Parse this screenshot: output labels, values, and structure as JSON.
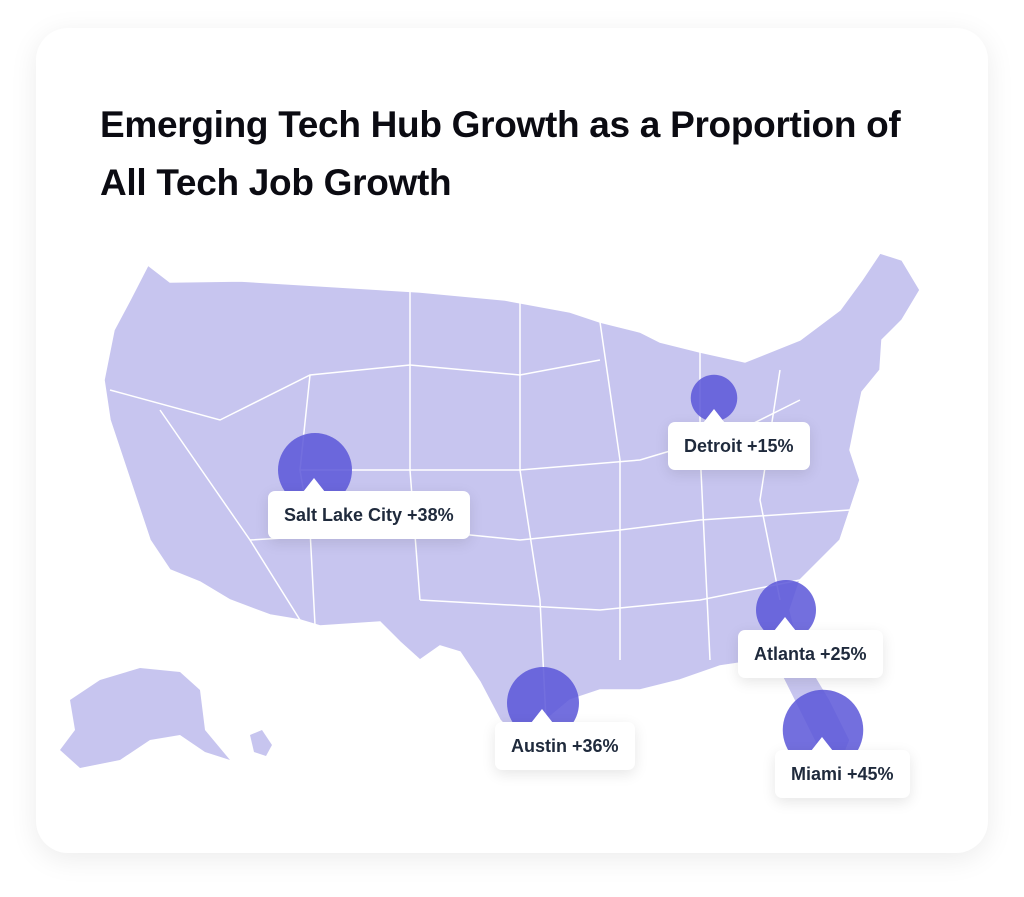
{
  "title": "Emerging Tech Hub Growth as a Proportion of All Tech Job Growth",
  "colors": {
    "map_fill": "#c7c5ef",
    "state_border": "#ffffff",
    "bubble": "#5a56d8",
    "label_text": "#1f2a3c"
  },
  "chart_data": {
    "type": "bubble",
    "title": "Emerging Tech Hub Growth as a Proportion of All Tech Job Growth",
    "unit": "%",
    "points": [
      {
        "city": "Salt Lake City",
        "value": 38,
        "label": "Salt Lake City +38%"
      },
      {
        "city": "Detroit",
        "value": 15,
        "label": "Detroit +15%"
      },
      {
        "city": "Atlanta",
        "value": 25,
        "label": "Atlanta +25%"
      },
      {
        "city": "Austin",
        "value": 36,
        "label": "Austin +36%"
      },
      {
        "city": "Miami",
        "value": 45,
        "label": "Miami +45%"
      }
    ]
  }
}
